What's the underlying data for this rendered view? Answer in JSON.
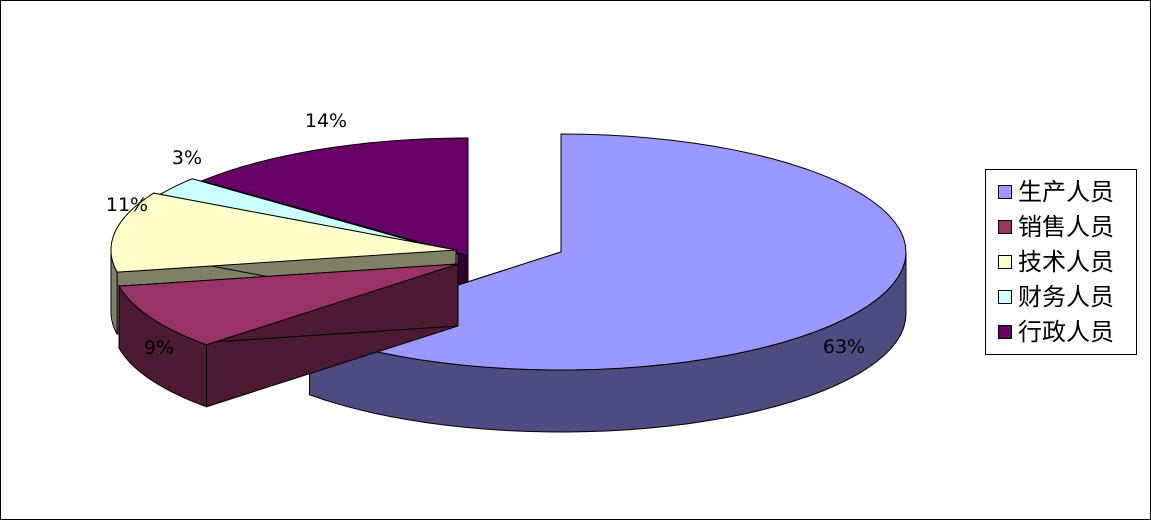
{
  "chart_data": {
    "type": "pie",
    "style": "3d-exploded",
    "categories": [
      "生产人员",
      "销售人员",
      "技术人员",
      "财务人员",
      "行政人员"
    ],
    "values": [
      63,
      9,
      11,
      3,
      14
    ],
    "data_labels": [
      "63%",
      "9%",
      "11%",
      "3%",
      "14%"
    ],
    "colors": [
      "#9999ff",
      "#993366",
      "#ffffcc",
      "#ccffff",
      "#660066"
    ],
    "side_colors": [
      "#4c4c80",
      "#4d1a33",
      "#808066",
      "#668080",
      "#330033"
    ],
    "legend_position": "right"
  }
}
